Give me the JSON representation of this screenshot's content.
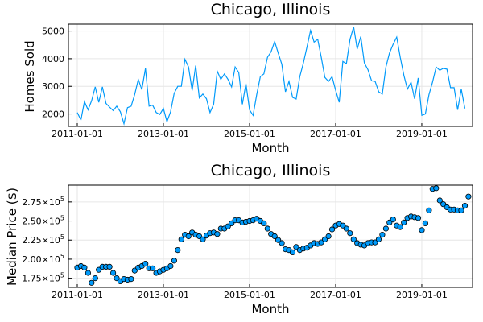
{
  "colors": {
    "series": "#009AFA",
    "marker_edge": "#000000",
    "grid": "#E6E6E6"
  },
  "chart_data": [
    {
      "type": "line",
      "title": "Chicago, Illinois",
      "xlabel": "Month",
      "ylabel": "Homes Sold",
      "x_start": "2011-01-01",
      "x_end": "2019-12-01",
      "x_tick_labels": [
        "2011-01-01",
        "2013-01-01",
        "2015-01-01",
        "2017-01-01",
        "2019-01-01"
      ],
      "y_ticks": [
        2000,
        3000,
        4000,
        5000
      ],
      "y_tick_labels": [
        "2000",
        "3000",
        "4000",
        "5000"
      ],
      "ylim": [
        1550,
        5250
      ],
      "grid": true,
      "legend": "none",
      "series": [
        {
          "values": [
            2050,
            1780,
            2450,
            2150,
            2480,
            2980,
            2420,
            2980,
            2380,
            2250,
            2120,
            2280,
            2080,
            1650,
            2230,
            2280,
            2700,
            3250,
            2880,
            3650,
            2280,
            2320,
            2050,
            1980,
            2200,
            1720,
            2080,
            2750,
            3000,
            3000,
            3980,
            3700,
            2850,
            3750,
            2580,
            2720,
            2550,
            2050,
            2350,
            3550,
            3250,
            3450,
            3250,
            2980,
            3700,
            3500,
            2350,
            3100,
            2150,
            1950,
            2700,
            3350,
            3450,
            4050,
            4250,
            4620,
            4200,
            3800,
            2800,
            3180,
            2600,
            2540,
            3350,
            3850,
            4420,
            5020,
            4600,
            4700,
            4050,
            3320,
            3180,
            3350,
            2850,
            2420,
            3900,
            3820,
            4700,
            5150,
            4350,
            4800,
            3850,
            3600,
            3200,
            3180,
            2800,
            2720,
            3700,
            4200,
            4520,
            4780,
            4050,
            3400,
            2900,
            3150,
            2550,
            3300,
            1950,
            2000,
            2700,
            3150,
            3700,
            3580,
            3650,
            3620,
            2950,
            2950,
            2150,
            2900,
            2200
          ]
        }
      ]
    },
    {
      "type": "scatter",
      "title": "Chicago, Illinois",
      "xlabel": "Month",
      "ylabel": "Median Price ($)",
      "x_start": "2011-01-01",
      "x_end": "2019-12-01",
      "x_tick_labels": [
        "2011-01-01",
        "2013-01-01",
        "2015-01-01",
        "2017-01-01",
        "2019-01-01"
      ],
      "y_ticks": [
        175000,
        200000,
        225000,
        250000,
        275000
      ],
      "y_tick_labels": [
        "1.75×10",
        "2.00×10",
        "2.25×10",
        "2.50×10",
        "2.75×10"
      ],
      "y_tick_exponent": "5",
      "ylim": [
        163000,
        297000
      ],
      "grid": true,
      "legend": "none",
      "series": [
        {
          "values": [
            189000,
            191000,
            189000,
            182000,
            169000,
            175000,
            186000,
            190000,
            190000,
            190000,
            182000,
            175000,
            171000,
            174000,
            173000,
            174000,
            185000,
            189000,
            191000,
            194000,
            188000,
            188000,
            182000,
            184000,
            186000,
            188000,
            191000,
            198000,
            212000,
            226000,
            232000,
            230000,
            235000,
            232000,
            230000,
            226000,
            231000,
            234000,
            235000,
            233000,
            240000,
            240000,
            243000,
            247000,
            251000,
            251000,
            248000,
            249000,
            250000,
            251000,
            253000,
            250000,
            247000,
            240000,
            233000,
            230000,
            225000,
            221000,
            213000,
            212000,
            209000,
            216000,
            212000,
            214000,
            215000,
            218000,
            221000,
            220000,
            222000,
            226000,
            230000,
            239000,
            244000,
            246000,
            244000,
            240000,
            234000,
            226000,
            221000,
            219000,
            218000,
            221000,
            222000,
            222000,
            226000,
            232000,
            240000,
            248000,
            252000,
            244000,
            242000,
            248000,
            254000,
            256000,
            255000,
            254000,
            238000,
            247000,
            264000,
            292000,
            293000,
            277000,
            272000,
            268000,
            265000,
            265000,
            264000,
            264000,
            270000,
            282000
          ]
        }
      ]
    }
  ]
}
